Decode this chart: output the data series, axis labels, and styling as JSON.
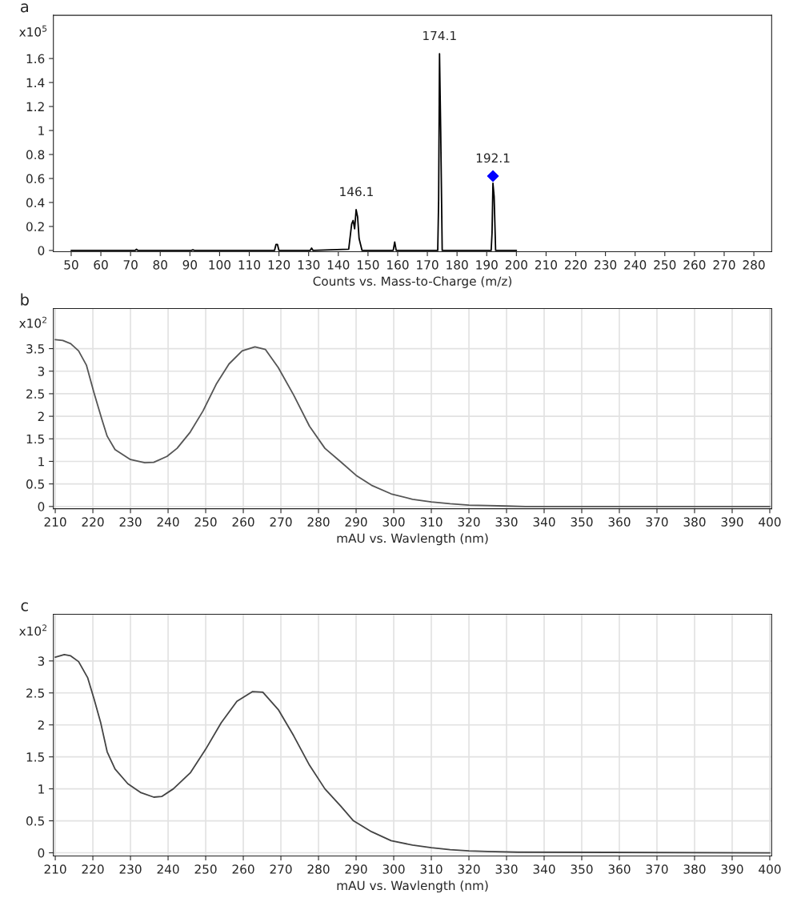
{
  "chart_data": [
    {
      "type": "line",
      "title": "a",
      "ylabel": "x10$^{5}$",
      "xlabel": "Counts vs. Mass-to-Charge (m/z)",
      "grid": false,
      "xlim": [
        44,
        286
      ],
      "ylim": [
        -0.01,
        1.96
      ],
      "xticks": [
        50,
        60,
        70,
        80,
        90,
        100,
        110,
        120,
        130,
        140,
        150,
        160,
        170,
        180,
        190,
        200,
        210,
        220,
        230,
        240,
        250,
        260,
        270,
        280
      ],
      "yticks": [
        0,
        0.2,
        0.4,
        0.6,
        0.8,
        1,
        1.2,
        1.4,
        1.6
      ],
      "series": [
        {
          "color": "#000000",
          "x": [
            50,
            71.5,
            72,
            72.5,
            90.5,
            91,
            91.5,
            118.5,
            119,
            119.5,
            120,
            130.5,
            131,
            131.5,
            143.5,
            144.5,
            145,
            145.5,
            146,
            146.5,
            147,
            147.5,
            148,
            158.5,
            159,
            159.5,
            173.5,
            173.8,
            174.1,
            174.5,
            175,
            191.5,
            191.8,
            192.1,
            192.5,
            193,
            200
          ],
          "values": [
            0,
            0,
            0.01,
            0,
            0,
            0.005,
            0,
            0,
            0.05,
            0.05,
            0,
            0,
            0.02,
            0,
            0.01,
            0.22,
            0.25,
            0.18,
            0.34,
            0.28,
            0.1,
            0.05,
            0,
            0,
            0.07,
            0,
            0,
            0.42,
            1.64,
            0.99,
            0,
            0,
            0.15,
            0.56,
            0.45,
            0,
            0
          ]
        },
        {
          "type": "scatter",
          "marker": "diamond",
          "color": "#0000ff",
          "x": [
            192.1
          ],
          "values": [
            0.62
          ]
        }
      ],
      "annotations": [
        {
          "text": "146.1",
          "x": 146.1,
          "y": 0.34
        },
        {
          "text": "174.1",
          "x": 174.1,
          "y": 1.64
        },
        {
          "text": "192.1",
          "x": 192.1,
          "y": 0.62
        }
      ]
    },
    {
      "type": "line",
      "title": "b",
      "ylabel": "x10$^{2}$",
      "xlabel": "mAU vs. Wavlength (nm)",
      "grid": true,
      "xlim": [
        209.5,
        400.5
      ],
      "ylim": [
        -0.05,
        4.39
      ],
      "xticks": [
        210,
        220,
        230,
        240,
        250,
        260,
        270,
        280,
        290,
        300,
        310,
        320,
        330,
        340,
        350,
        360,
        370,
        380,
        390,
        400
      ],
      "yticks": [
        0,
        0.5,
        1,
        1.5,
        2,
        2.5,
        3,
        3.5
      ],
      "series": [
        {
          "color": "#555555",
          "x": [
            210,
            212,
            214.1,
            216.2,
            218.3,
            220.3,
            222.4,
            223.8,
            225.9,
            230,
            233.8,
            236.2,
            239.7,
            242.4,
            245.9,
            249.3,
            252.8,
            256.2,
            259.7,
            263.1,
            265.9,
            269.3,
            273.4,
            277.6,
            281.7,
            285.9,
            290,
            294.1,
            299.3,
            305,
            310,
            315,
            320,
            325,
            330,
            335,
            400
          ],
          "values": [
            3.7,
            3.68,
            3.61,
            3.45,
            3.13,
            2.52,
            1.93,
            1.56,
            1.26,
            1.04,
            0.97,
            0.98,
            1.11,
            1.29,
            1.65,
            2.12,
            2.71,
            3.16,
            3.45,
            3.54,
            3.48,
            3.08,
            2.47,
            1.78,
            1.29,
            0.99,
            0.69,
            0.47,
            0.28,
            0.16,
            0.1,
            0.06,
            0.03,
            0.02,
            0.01,
            0,
            0
          ]
        }
      ]
    },
    {
      "type": "line",
      "title": "c",
      "ylabel": "x10$^{2}$",
      "xlabel": "mAU vs. Wavlength (nm)",
      "grid": true,
      "xlim": [
        209.5,
        400.5
      ],
      "ylim": [
        -0.05,
        3.73
      ],
      "xticks": [
        210,
        220,
        230,
        240,
        250,
        260,
        270,
        280,
        290,
        300,
        310,
        320,
        330,
        340,
        350,
        360,
        370,
        380,
        390,
        400
      ],
      "yticks": [
        0,
        0.5,
        1,
        1.5,
        2,
        2.5,
        3
      ],
      "series": [
        {
          "color": "#444444",
          "x": [
            210,
            212.4,
            214.1,
            216.2,
            218.6,
            220.3,
            222.1,
            223.8,
            225.9,
            229.3,
            232.8,
            236.2,
            238.3,
            241.4,
            245.9,
            250,
            254.1,
            258.3,
            262.4,
            265.2,
            269.3,
            273.4,
            277.6,
            281.7,
            285.9,
            289.3,
            294.1,
            299.3,
            305,
            310,
            315,
            320,
            325,
            333,
            400
          ],
          "values": [
            3.06,
            3.1,
            3.08,
            2.99,
            2.74,
            2.41,
            2.03,
            1.58,
            1.31,
            1.08,
            0.94,
            0.87,
            0.88,
            1.0,
            1.25,
            1.62,
            2.03,
            2.37,
            2.52,
            2.51,
            2.24,
            1.83,
            1.37,
            1.0,
            0.73,
            0.5,
            0.33,
            0.19,
            0.12,
            0.08,
            0.05,
            0.03,
            0.02,
            0.01,
            0
          ]
        }
      ]
    }
  ]
}
